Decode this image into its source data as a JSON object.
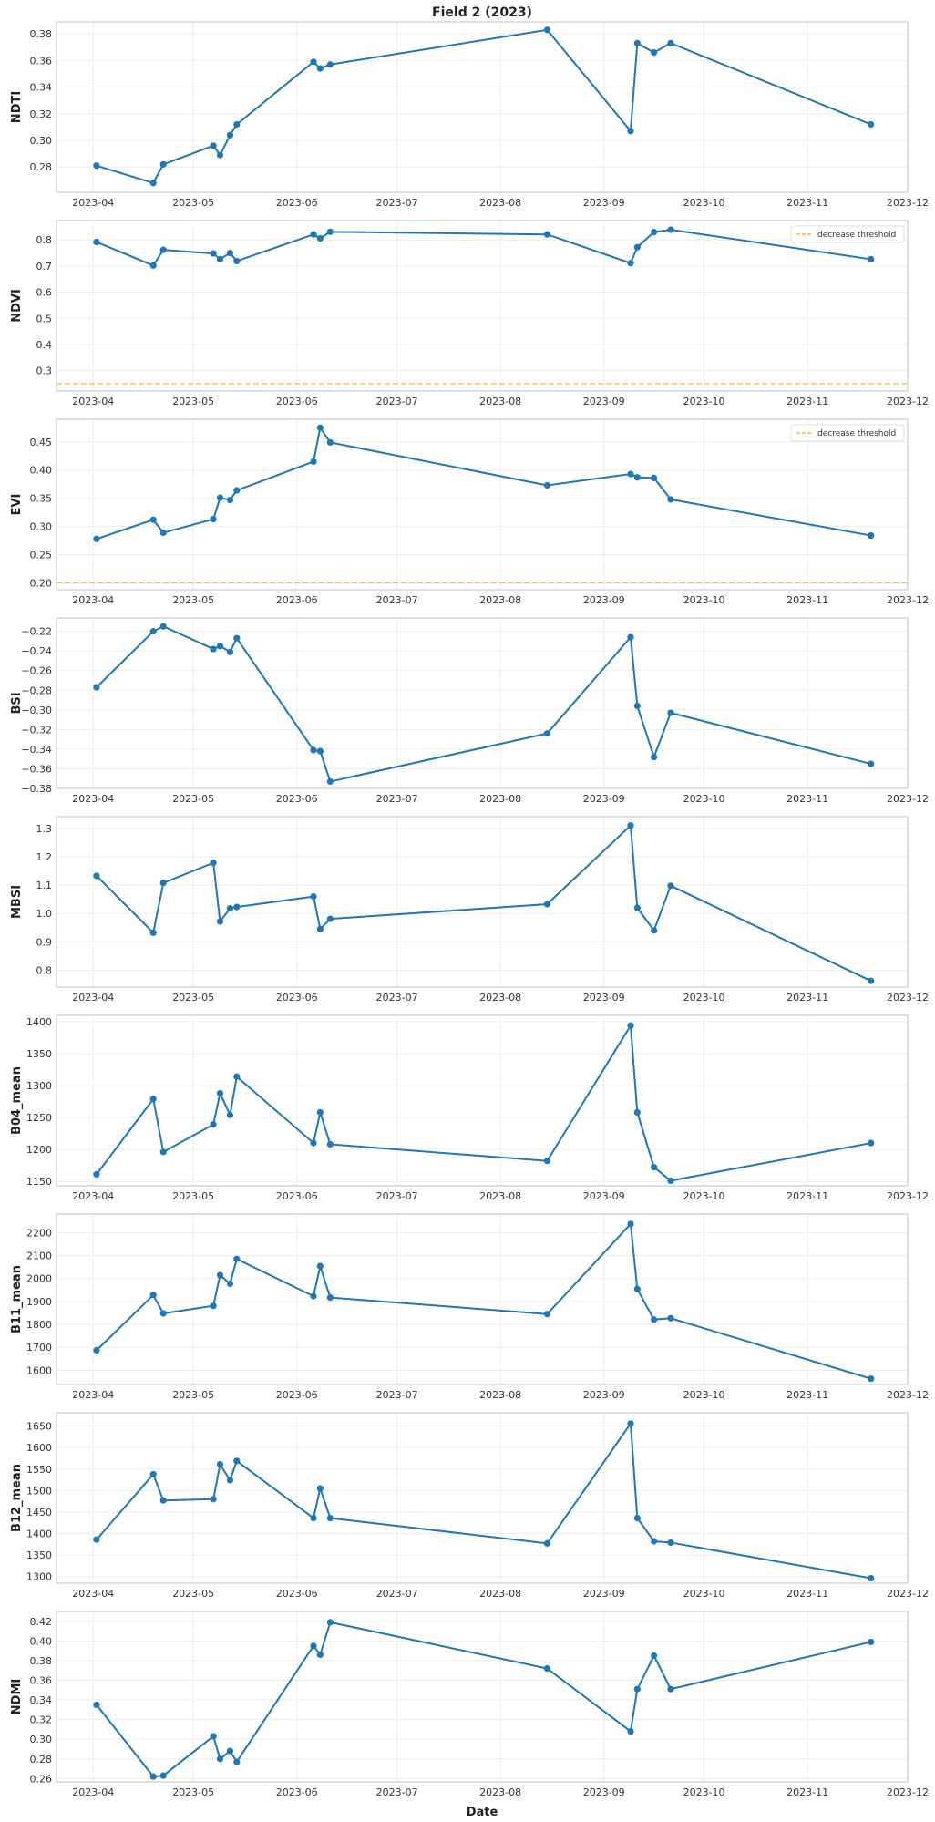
{
  "title": "Field 2 (2023)",
  "xlabel": "Date",
  "legend_label": "decrease threshold",
  "colors": {
    "line": "#1f77b4",
    "threshold": "#ffa500",
    "grid": "#ebebeb",
    "axes": "#cccccc"
  },
  "chart_data": {
    "type": "line",
    "title": "Field 2 (2023)",
    "xlabel": "Date",
    "xlim": [
      "2023-03-21",
      "2023-12-01"
    ],
    "xticks": [
      "2023-04",
      "2023-05",
      "2023-06",
      "2023-07",
      "2023-08",
      "2023-09",
      "2023-10",
      "2023-11",
      "2023-12"
    ],
    "x": [
      "2023-04-02",
      "2023-04-19",
      "2023-04-22",
      "2023-05-07",
      "2023-05-09",
      "2023-05-12",
      "2023-05-14",
      "2023-06-06",
      "2023-06-08",
      "2023-06-11",
      "2023-08-15",
      "2023-09-09",
      "2023-09-11",
      "2023-09-16",
      "2023-09-21",
      "2023-11-20"
    ],
    "grid": true,
    "panels": [
      {
        "ylabel": "NDTI",
        "ylim": [
          0.261,
          0.389
        ],
        "yticks": [
          0.28,
          0.3,
          0.32,
          0.34,
          0.36,
          0.38
        ],
        "ytick_labels": [
          "0.28",
          "0.30",
          "0.32",
          "0.34",
          "0.36",
          "0.38"
        ],
        "values": [
          0.281,
          0.268,
          0.282,
          0.296,
          0.289,
          0.304,
          0.312,
          0.359,
          0.354,
          0.357,
          0.383,
          0.307,
          0.373,
          0.366,
          0.373,
          0.312
        ]
      },
      {
        "ylabel": "NDVI",
        "ylim": [
          0.222,
          0.874
        ],
        "yticks": [
          0.3,
          0.4,
          0.5,
          0.6,
          0.7,
          0.8
        ],
        "ytick_labels": [
          "0.3",
          "0.4",
          "0.5",
          "0.6",
          "0.7",
          "0.8"
        ],
        "values": [
          0.792,
          0.702,
          0.762,
          0.748,
          0.726,
          0.75,
          0.719,
          0.821,
          0.806,
          0.831,
          0.821,
          0.711,
          0.772,
          0.83,
          0.839,
          0.726
        ],
        "threshold": 0.25,
        "legend": "top-right"
      },
      {
        "ylabel": "EVI",
        "ylim": [
          0.188,
          0.49
        ],
        "yticks": [
          0.2,
          0.25,
          0.3,
          0.35,
          0.4,
          0.45
        ],
        "ytick_labels": [
          "0.20",
          "0.25",
          "0.30",
          "0.35",
          "0.40",
          "0.45"
        ],
        "values": [
          0.278,
          0.312,
          0.289,
          0.313,
          0.351,
          0.347,
          0.364,
          0.415,
          0.475,
          0.449,
          0.373,
          0.393,
          0.387,
          0.386,
          0.348,
          0.284
        ],
        "threshold": 0.2,
        "legend": "top-right"
      },
      {
        "ylabel": "BSI",
        "ylim": [
          -0.38,
          -0.2064
        ],
        "yticks": [
          -0.38,
          -0.36,
          -0.34,
          -0.32,
          -0.3,
          -0.28,
          -0.26,
          -0.24,
          -0.22
        ],
        "ytick_labels": [
          "−0.38",
          "−0.36",
          "−0.34",
          "−0.32",
          "−0.30",
          "−0.28",
          "−0.26",
          "−0.24",
          "−0.22"
        ],
        "values": [
          -0.277,
          -0.22,
          -0.215,
          -0.238,
          -0.235,
          -0.241,
          -0.227,
          -0.341,
          -0.342,
          -0.373,
          -0.324,
          -0.226,
          -0.296,
          -0.348,
          -0.303,
          -0.355
        ]
      },
      {
        "ylabel": "MBSI",
        "ylim": [
          0.74,
          1.342
        ],
        "yticks": [
          0.8,
          0.9,
          1.0,
          1.1,
          1.2,
          1.3
        ],
        "ytick_labels": [
          "0.8",
          "0.9",
          "1.0",
          "1.1",
          "1.2",
          "1.3"
        ],
        "values": [
          1.133,
          0.932,
          1.108,
          1.179,
          0.972,
          1.018,
          1.023,
          1.06,
          0.945,
          0.981,
          1.033,
          1.311,
          1.02,
          0.94,
          1.098,
          0.762
        ]
      },
      {
        "ylabel": "B04_mean",
        "ylim": [
          1143,
          1410
        ],
        "yticks": [
          1150,
          1200,
          1250,
          1300,
          1350,
          1400
        ],
        "ytick_labels": [
          "1150",
          "1200",
          "1250",
          "1300",
          "1350",
          "1400"
        ],
        "values": [
          1161,
          1279,
          1196,
          1239,
          1288,
          1254,
          1314,
          1210,
          1258,
          1208,
          1182,
          1394,
          1258,
          1172,
          1151,
          1210
        ]
      },
      {
        "ylabel": "B11_mean",
        "ylim": [
          1538,
          2281
        ],
        "yticks": [
          1600,
          1700,
          1800,
          1900,
          2000,
          2100,
          2200
        ],
        "ytick_labels": [
          "1600",
          "1700",
          "1800",
          "1900",
          "2000",
          "2100",
          "2200"
        ],
        "values": [
          1687,
          1928,
          1848,
          1881,
          2015,
          1977,
          2085,
          1923,
          2054,
          1917,
          1845,
          2238,
          1954,
          1821,
          1827,
          1563
        ]
      },
      {
        "ylabel": "B12_mean",
        "ylim": [
          1284.5,
          1681
        ],
        "yticks": [
          1300,
          1350,
          1400,
          1450,
          1500,
          1550,
          1600,
          1650
        ],
        "ytick_labels": [
          "1300",
          "1350",
          "1400",
          "1450",
          "1500",
          "1550",
          "1600",
          "1650"
        ],
        "values": [
          1386,
          1538,
          1477,
          1480,
          1561,
          1524,
          1569,
          1436,
          1505,
          1436,
          1377,
          1656,
          1436,
          1382,
          1379,
          1296
        ]
      },
      {
        "ylabel": "NDMI",
        "ylim": [
          0.2566,
          0.43
        ],
        "yticks": [
          0.26,
          0.28,
          0.3,
          0.32,
          0.34,
          0.36,
          0.38,
          0.4,
          0.42
        ],
        "ytick_labels": [
          "0.26",
          "0.28",
          "0.30",
          "0.32",
          "0.34",
          "0.36",
          "0.38",
          "0.40",
          "0.42"
        ],
        "values": [
          0.335,
          0.262,
          0.263,
          0.303,
          0.28,
          0.288,
          0.277,
          0.395,
          0.386,
          0.419,
          0.372,
          0.308,
          0.351,
          0.385,
          0.351,
          0.399
        ]
      }
    ]
  }
}
